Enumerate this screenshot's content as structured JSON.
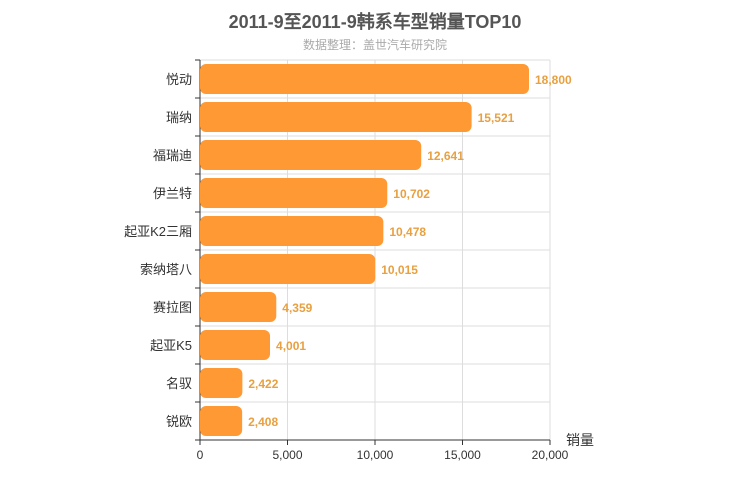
{
  "chart_data": {
    "type": "bar",
    "orientation": "horizontal",
    "title": "2011-9至2011-9韩系车型销量TOP10",
    "subtitle": "数据整理：盖世汽车研究院",
    "categories": [
      "悦动",
      "瑞纳",
      "福瑞迪",
      "伊兰特",
      "起亚K2三厢",
      "索纳塔八",
      "赛拉图",
      "起亚K5",
      "名驭",
      "锐欧"
    ],
    "values": [
      18800,
      15521,
      12641,
      10702,
      10478,
      10015,
      4359,
      4001,
      2422,
      2408
    ],
    "value_labels": [
      "18,800",
      "15,521",
      "12,641",
      "10,702",
      "10,478",
      "10,015",
      "4,359",
      "4,001",
      "2,422",
      "2,408"
    ],
    "xlabel": "销量",
    "ylabel": "",
    "xlim": [
      0,
      20000
    ],
    "xticks": [
      0,
      5000,
      10000,
      15000,
      20000
    ],
    "xtick_labels": [
      "0",
      "5,000",
      "10,000",
      "15,000",
      "20,000"
    ],
    "grid": true,
    "legend": "none",
    "colors": {
      "bar": "#ff9933",
      "data_label": "#e8a040",
      "grid": "#dddddd",
      "axis": "#333333",
      "title": "#555555",
      "subtitle": "#aaaaaa"
    }
  }
}
